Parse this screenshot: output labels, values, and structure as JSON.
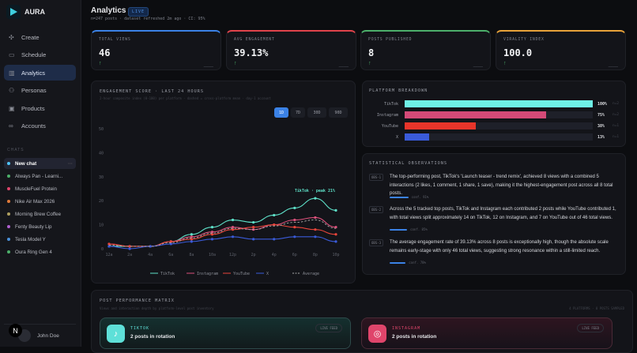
{
  "app": {
    "name": "AURA"
  },
  "sidebar": {
    "nav": [
      {
        "label": "Create",
        "icon": "sparkle-icon"
      },
      {
        "label": "Schedule",
        "icon": "calendar-icon"
      },
      {
        "label": "Analytics",
        "icon": "bar-chart-icon",
        "active": true
      },
      {
        "label": "Personas",
        "icon": "users-icon"
      },
      {
        "label": "Products",
        "icon": "box-icon"
      },
      {
        "label": "Accounts",
        "icon": "link-icon"
      }
    ],
    "chats_heading": "CHATS",
    "chats": [
      {
        "label": "New chat",
        "color": "#4fc3f7",
        "active": true,
        "more": "···"
      },
      {
        "label": "Always Pan - Learni...",
        "color": "#4caf6a"
      },
      {
        "label": "MuscleFuel Protein",
        "color": "#e0456b"
      },
      {
        "label": "Nike Air Max 2026",
        "color": "#e07a3a"
      },
      {
        "label": "Morning Brew Coffee",
        "color": "#b0a060"
      },
      {
        "label": "Fenty Beauty Lip",
        "color": "#b060d0"
      },
      {
        "label": "Tesla Model Y",
        "color": "#4a90d9"
      },
      {
        "label": "Oura Ring Gen 4",
        "color": "#4caf6a"
      }
    ],
    "user": {
      "name": "John Doe",
      "badge": "N"
    }
  },
  "header": {
    "title": "Analytics",
    "badge": "LIVE",
    "subtitle": "n=247 posts · dataset refreshed 2m ago · CI: 95%"
  },
  "kpis": [
    {
      "label": "TOTAL VIEWS",
      "value": "46",
      "color": "#3b82e6",
      "trend": "↑",
      "spark": "▁▁▁▁"
    },
    {
      "label": "AVG ENGAGEMENT",
      "value": "39.13%",
      "color": "#e0434b",
      "trend": "↑",
      "spark": "▁▁▁▁"
    },
    {
      "label": "POSTS PUBLISHED",
      "value": "8",
      "color": "#4caf6a",
      "trend": "↑",
      "spark": "▁▁▁▁"
    },
    {
      "label": "VIRALITY INDEX",
      "value": "100.0",
      "color": "#e8a23a",
      "trend": "↑",
      "spark": "▁▁▁▁"
    }
  ],
  "engagement": {
    "title": "ENGAGEMENT SCORE · LAST 24 HOURS",
    "subtitle": "2-hour composite index (0-100) per platform · dashed = cross-platform mean · day-1 account",
    "ranges": [
      "1D",
      "7D",
      "30D",
      "90D"
    ],
    "active_range": "1D",
    "annotation": "TikTok · peak 21%"
  },
  "chart_data": {
    "type": "line",
    "x": [
      "12a",
      "2a",
      "4a",
      "6a",
      "8a",
      "10a",
      "12p",
      "2p",
      "4p",
      "6p",
      "8p",
      "10p"
    ],
    "ylim": [
      0,
      50
    ],
    "yticks": [
      0,
      10,
      20,
      30,
      40,
      50
    ],
    "grid": false,
    "legend": "bottom",
    "series": [
      {
        "name": "TikTok",
        "color": "#5ee0c8",
        "values": [
          1,
          1,
          1,
          3,
          6,
          9,
          12,
          11,
          14,
          17,
          21,
          16
        ]
      },
      {
        "name": "Instagram",
        "color": "#d9507a",
        "values": [
          2,
          1,
          1,
          3,
          5,
          7,
          9,
          8,
          10,
          12,
          13,
          9
        ]
      },
      {
        "name": "YouTube",
        "color": "#e8453a",
        "values": [
          2,
          1,
          1,
          3,
          4,
          6,
          8,
          9,
          10,
          9,
          8,
          6
        ]
      },
      {
        "name": "X",
        "color": "#3a5bd9",
        "values": [
          1,
          0,
          1,
          2,
          3,
          4,
          5,
          4,
          4,
          5,
          5,
          3
        ]
      },
      {
        "name": "Average",
        "color": "#aaaaaa",
        "dashed": true,
        "values": [
          1.5,
          1,
          1,
          2.5,
          4.5,
          6.5,
          8.5,
          8,
          9.5,
          11,
          12,
          8.5
        ]
      }
    ]
  },
  "breakdown": {
    "title": "PLATFORM BREAKDOWN",
    "rows": [
      {
        "name": "TikTok",
        "percent": 100,
        "label": "100%",
        "n": "n=2",
        "color": "#6ef0e6"
      },
      {
        "name": "Instagram",
        "percent": 75,
        "label": "75%",
        "n": "n=2",
        "color": "#d44a78"
      },
      {
        "name": "YouTube",
        "percent": 38,
        "label": "38%",
        "n": "n=1",
        "color": "#e8352a"
      },
      {
        "name": "X",
        "percent": 13,
        "label": "13%",
        "n": "n=1",
        "color": "#3a5bd9"
      }
    ]
  },
  "observations": {
    "title": "STATISTICAL OBSERVATIONS",
    "items": [
      {
        "tag": "OBS-1",
        "text": "The top-performing post, TikTok's 'Launch teaser - trend remix', achieved 8 views with a combined 5 interactions (2 likes, 1 comment, 1 share, 1 save), making it the highest-engagement post across all 8 total posts.",
        "conf": "conf. 91%",
        "conf_value": 91
      },
      {
        "tag": "OBS-2",
        "text": "Across the 5 tracked top posts, TikTok and Instagram each contributed 2 posts while YouTube contributed 1, with total views split approximately 14 on TikTok, 12 on Instagram, and 7 on YouTube out of 46 total views.",
        "conf": "conf. 85%",
        "conf_value": 85
      },
      {
        "tag": "OBS-3",
        "text": "The average engagement rate of 39.13% across 8 posts is exceptionally high, though the absolute scale remains early-stage with only 46 total views, suggesting strong resonance within a still-limited reach.",
        "conf": "conf. 78%",
        "conf_value": 78
      }
    ]
  },
  "matrix": {
    "title": "POST PERFORMANCE MATRIX",
    "subtitle": "Views and interaction depth by platform-level post inventory",
    "meta": "4 PLATFORMS · 8 POSTS SAMPLED",
    "platforms": [
      {
        "name": "TIKTOK",
        "count": "2 posts in rotation",
        "feed": "LIVE FEED",
        "color": "#5ee0d8",
        "icon": "tiktok-icon"
      },
      {
        "name": "INSTAGRAM",
        "count": "2 posts in rotation",
        "feed": "LIVE FEED",
        "color": "#e0456b",
        "icon": "instagram-icon"
      }
    ]
  }
}
